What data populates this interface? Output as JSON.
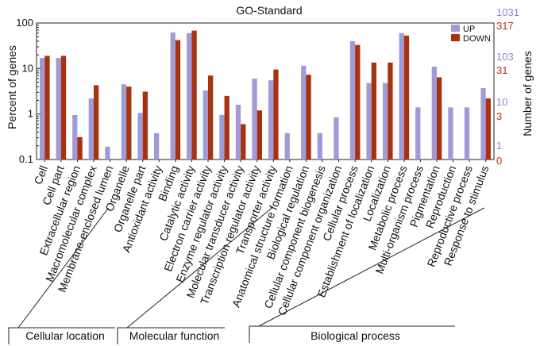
{
  "chart_data": {
    "type": "bar",
    "title": "GO-Standard",
    "ylabel": "Percent of genes",
    "ylabel_right": "Number of genes",
    "yscale": "log",
    "ylim": [
      0.1,
      100
    ],
    "yticks": [
      "0.1",
      "1",
      "10",
      "100"
    ],
    "right_ticks_up": [
      "1",
      "10",
      "103",
      "1031"
    ],
    "right_ticks_down": [
      "0",
      "3",
      "31",
      "317"
    ],
    "colors": {
      "UP": "#a09ad6",
      "DOWN": "#a8310f",
      "right_up": "#8d89cf",
      "right_down": "#b5331a"
    },
    "legend": [
      "UP",
      "DOWN"
    ],
    "categories": [
      "Cell",
      "Cell part",
      "Extracellular region",
      "Macromolecular complex",
      "Membrane-enclosed lumen",
      "Organelle",
      "Organelle part",
      "Antioxidant activity",
      "Binding",
      "Catalytic activity",
      "Electron carrier activity",
      "Enzyme regulator activity",
      "Molecular transducer activity",
      "Transcription regulator activity",
      "Transporter activity",
      "Anatomical structure formation",
      "Biological regulation",
      "Cellular component biogenesis",
      "Cellular component organization",
      "Cellular process",
      "Establishment of localization",
      "Localization",
      "Metabolic process",
      "Multi-organism process",
      "Pigmentation",
      "Reproduction",
      "Reproductive process",
      "Response to stimulus"
    ],
    "series": [
      {
        "name": "UP",
        "values": [
          17,
          17,
          0.95,
          2.2,
          0.19,
          4.5,
          1.05,
          0.38,
          62,
          60,
          3.3,
          0.95,
          1.6,
          6.0,
          5.5,
          0.38,
          11.5,
          0.38,
          0.85,
          40,
          4.8,
          4.8,
          60,
          1.4,
          11,
          1.4,
          1.4,
          3.7
        ]
      },
      {
        "name": "DOWN",
        "values": [
          19,
          19,
          0.31,
          4.3,
          null,
          4.0,
          3.1,
          null,
          42,
          68,
          7.0,
          2.5,
          0.6,
          1.2,
          9.5,
          null,
          7.3,
          null,
          null,
          33,
          13.5,
          13.5,
          53,
          null,
          6.4,
          null,
          null,
          2.2
        ]
      }
    ],
    "groups": [
      {
        "label": "Cellular location",
        "from": 0,
        "to": 4
      },
      {
        "label": "Molecular function",
        "from": 7,
        "to": 14
      },
      {
        "label": "Biological process",
        "from": 15,
        "to": 27
      }
    ]
  }
}
